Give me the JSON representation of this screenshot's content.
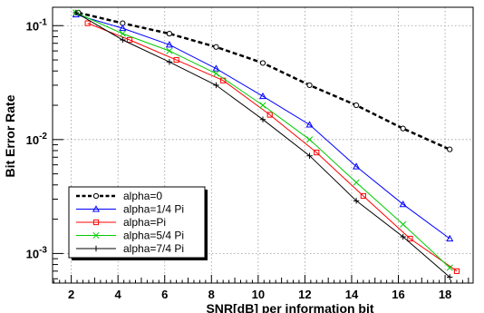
{
  "chart_data": {
    "type": "line",
    "title": "",
    "xlabel": "SNR[dB] per information bit",
    "ylabel": "Bit Error Rate",
    "xlim": [
      1.2,
      19.2
    ],
    "ylim": [
      0.00055,
      0.145
    ],
    "yscale": "log",
    "grid": true,
    "legend_position": "bottom-left",
    "x_ticks": [
      2,
      4,
      6,
      8,
      10,
      12,
      14,
      16,
      18
    ],
    "y_major_ticks": [
      0.001,
      0.01,
      0.1
    ],
    "y_tick_labels": [
      {
        "base": "10",
        "exp": "-3",
        "value": 0.001
      },
      {
        "base": "10",
        "exp": "-2",
        "value": 0.01
      },
      {
        "base": "10",
        "exp": "-1",
        "value": 0.1
      }
    ],
    "series": [
      {
        "name": "alpha=0",
        "color": "#000000",
        "marker": "circle",
        "dashed": true,
        "width": 2.5,
        "x": [
          2.3,
          4.2,
          6.2,
          8.2,
          10.2,
          12.2,
          14.2,
          16.2,
          18.2
        ],
        "y": [
          0.13,
          0.105,
          0.085,
          0.065,
          0.047,
          0.03,
          0.02,
          0.0125,
          0.0082
        ]
      },
      {
        "name": "alpha=1/4 Pi",
        "color": "#0000ff",
        "marker": "triangle",
        "dashed": false,
        "width": 1,
        "x": [
          2.2,
          4.2,
          6.2,
          8.2,
          10.2,
          12.2,
          14.2,
          16.2,
          18.2
        ],
        "y": [
          0.125,
          0.095,
          0.068,
          0.042,
          0.024,
          0.0135,
          0.0058,
          0.0027,
          0.00135
        ]
      },
      {
        "name": "alpha=Pi",
        "color": "#ff0000",
        "marker": "square",
        "dashed": false,
        "width": 1,
        "x": [
          2.7,
          4.5,
          6.5,
          8.5,
          10.5,
          12.5,
          14.5,
          16.5,
          18.5
        ],
        "y": [
          0.105,
          0.075,
          0.05,
          0.033,
          0.0165,
          0.0077,
          0.0032,
          0.00135,
          0.0007
        ]
      },
      {
        "name": "alpha=5/4 Pi",
        "color": "#00cc00",
        "marker": "x",
        "dashed": false,
        "width": 1,
        "x": [
          2.2,
          4.2,
          6.2,
          8.2,
          10.2,
          12.2,
          14.2,
          16.2,
          18.2
        ],
        "y": [
          0.13,
          0.085,
          0.06,
          0.038,
          0.02,
          0.01,
          0.0042,
          0.0018,
          0.00075
        ]
      },
      {
        "name": "alpha=7/4 Pi",
        "color": "#000000",
        "marker": "plus",
        "dashed": false,
        "width": 1,
        "x": [
          2.2,
          4.2,
          6.2,
          8.2,
          10.2,
          12.2,
          14.2,
          16.2,
          18.2
        ],
        "y": [
          0.13,
          0.075,
          0.048,
          0.03,
          0.015,
          0.0072,
          0.0029,
          0.0014,
          0.00062
        ]
      }
    ]
  }
}
